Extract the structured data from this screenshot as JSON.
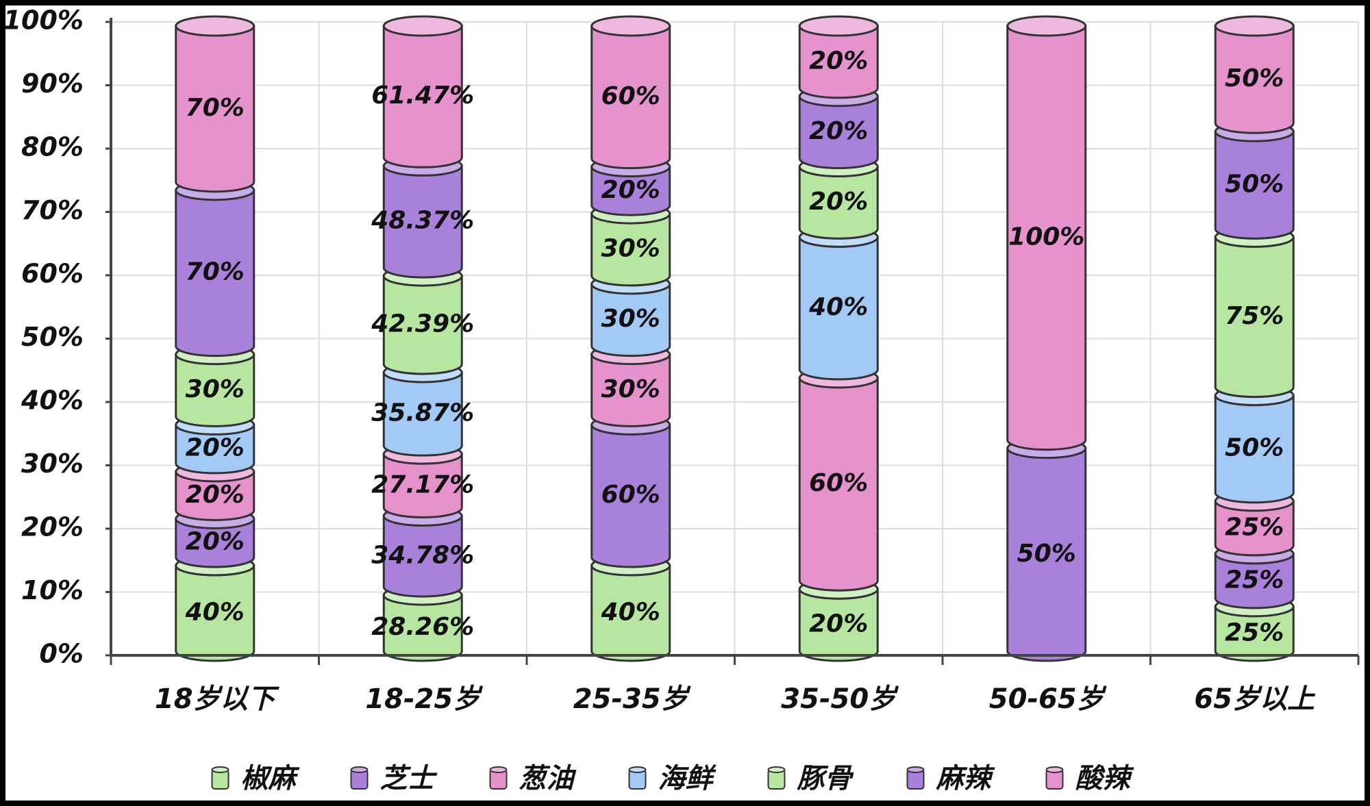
{
  "chart_data": {
    "type": "bar",
    "stacking": "percent",
    "grid": true,
    "categories": [
      "18岁以下",
      "18-25岁",
      "25-35岁",
      "35-50岁",
      "50-65岁",
      "65岁以上"
    ],
    "series": [
      {
        "name": "椒麻",
        "color": "#b7e6a1",
        "values": [
          40,
          28.26,
          40,
          20,
          null,
          25
        ],
        "value_labels": [
          "40%",
          "28.26%",
          "40%",
          "20%",
          null,
          "25%"
        ]
      },
      {
        "name": "芝士",
        "color": "#a980da",
        "values": [
          20,
          34.78,
          60,
          null,
          50,
          25
        ],
        "value_labels": [
          "20%",
          "34.78%",
          "60%",
          null,
          "50%",
          "25%"
        ]
      },
      {
        "name": "葱油",
        "color": "#e693cd",
        "values": [
          20,
          27.17,
          30,
          60,
          100,
          25
        ],
        "value_labels": [
          "20%",
          "27.17%",
          "30%",
          "60%",
          "100%",
          "25%"
        ]
      },
      {
        "name": "海鲜",
        "color": "#a3c9f7",
        "values": [
          20,
          35.87,
          30,
          40,
          null,
          50
        ],
        "value_labels": [
          "20%",
          "35.87%",
          "30%",
          "40%",
          null,
          "50%"
        ]
      },
      {
        "name": "豚骨",
        "color": "#b7e6a1",
        "values": [
          30,
          42.39,
          30,
          20,
          null,
          75
        ],
        "value_labels": [
          "30%",
          "42.39%",
          "30%",
          "20%",
          null,
          "75%"
        ]
      },
      {
        "name": "麻辣",
        "color": "#a980da",
        "values": [
          70,
          48.37,
          20,
          20,
          null,
          50
        ],
        "value_labels": [
          "70%",
          "48.37%",
          "20%",
          "20%",
          null,
          "50%"
        ]
      },
      {
        "name": "酸辣",
        "color": "#e693cd",
        "values": [
          70,
          61.47,
          60,
          20,
          null,
          50
        ],
        "value_labels": [
          "70%",
          "61.47%",
          "60%",
          "20%",
          null,
          "50%"
        ]
      }
    ],
    "ylim": [
      0,
      100
    ],
    "yticks": [
      {
        "value": 0,
        "label": "0%"
      },
      {
        "value": 10,
        "label": "10%"
      },
      {
        "value": 20,
        "label": "20%"
      },
      {
        "value": 30,
        "label": "30%"
      },
      {
        "value": 40,
        "label": "40%"
      },
      {
        "value": 50,
        "label": "50%"
      },
      {
        "value": 60,
        "label": "60%"
      },
      {
        "value": 70,
        "label": "70%"
      },
      {
        "value": 80,
        "label": "80%"
      },
      {
        "value": 90,
        "label": "90%"
      },
      {
        "value": 100,
        "label": "100%"
      }
    ]
  }
}
